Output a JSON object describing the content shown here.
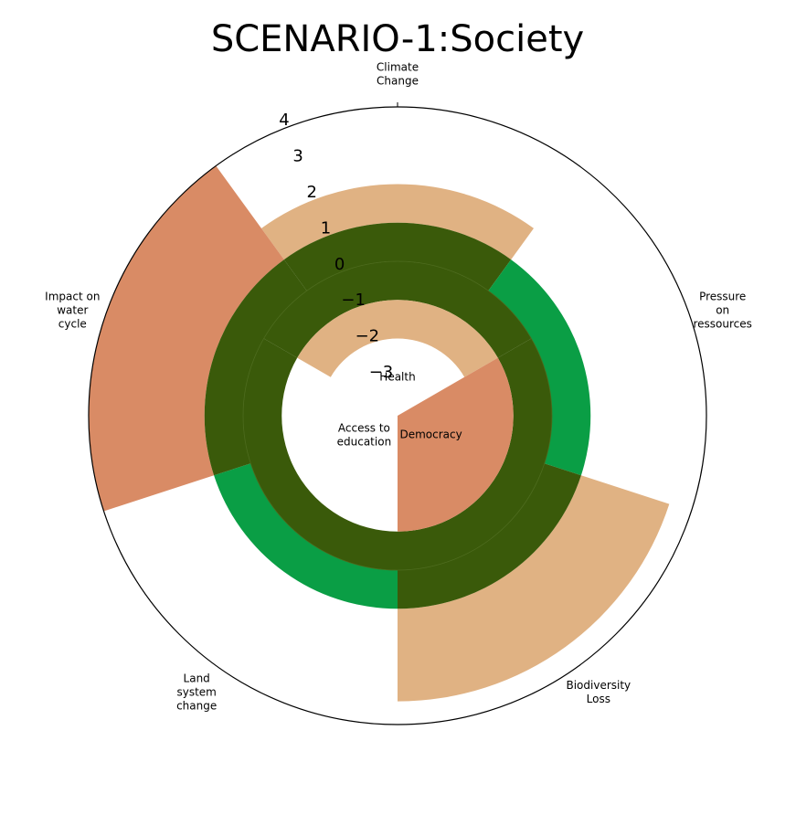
{
  "chart_data": {
    "type": "polar-bar",
    "title": "SCENARIO-1:Society",
    "ylim": [
      -4,
      4
    ],
    "yticks": [
      {
        "value": -3,
        "label": "−3"
      },
      {
        "value": -2,
        "label": "−2"
      },
      {
        "value": -1,
        "label": "−1"
      },
      0,
      1,
      2,
      3,
      4
    ],
    "safe_ring": [
      -1,
      0,
      1
    ],
    "safe_color": "#3a5a0a",
    "boundaries": {
      "categories": [
        "Climate\nChange",
        "Pressure\non\nressources",
        "Biodiversity\nLoss",
        "Land\nsystem\nchange",
        "Impact on\nwater\ncycle"
      ],
      "values": [
        2,
        1,
        3.4,
        1,
        4
      ],
      "colors": [
        "#e0b283",
        "#0a9e45",
        "#e0b283",
        "#0a9e45",
        "#d98b65"
      ]
    },
    "social": {
      "categories": [
        "Health",
        "Democracy",
        "Access to\neducation"
      ],
      "values": [
        -2,
        -4,
        -1
      ],
      "colors": [
        "#e0b283",
        "#d98b65",
        "#0a9e45"
      ]
    }
  }
}
